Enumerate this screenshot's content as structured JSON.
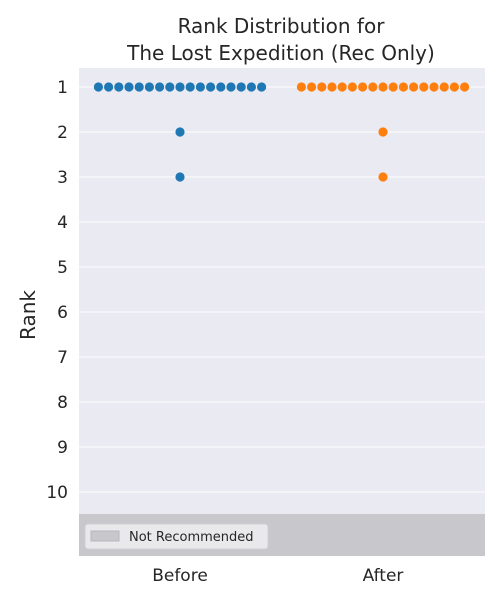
{
  "chart_data": {
    "type": "scatter",
    "title_lines": [
      "Rank Distribution for",
      "The Lost Expedition (Rec Only)"
    ],
    "ylabel": "Rank",
    "categories": [
      "Before",
      "After"
    ],
    "y_ticks": [
      1,
      2,
      3,
      4,
      5,
      6,
      7,
      8,
      9,
      10
    ],
    "y_inverted": true,
    "grid": true,
    "not_recommended_band": {
      "label": "Not Recommended",
      "color": "#c8c8cc"
    },
    "legend_position": "lower-left",
    "series": [
      {
        "category": "Before",
        "color": "#1f77b4",
        "values": [
          1,
          1,
          1,
          1,
          1,
          1,
          1,
          1,
          1,
          1,
          1,
          1,
          1,
          1,
          1,
          1,
          1,
          2,
          3
        ]
      },
      {
        "category": "After",
        "color": "#ff7f0e",
        "values": [
          1,
          1,
          1,
          1,
          1,
          1,
          1,
          1,
          1,
          1,
          1,
          1,
          1,
          1,
          1,
          1,
          1,
          2,
          3
        ]
      }
    ],
    "colors": {
      "plot_background": "#eaeaf2",
      "grid": "#ffffff"
    }
  }
}
